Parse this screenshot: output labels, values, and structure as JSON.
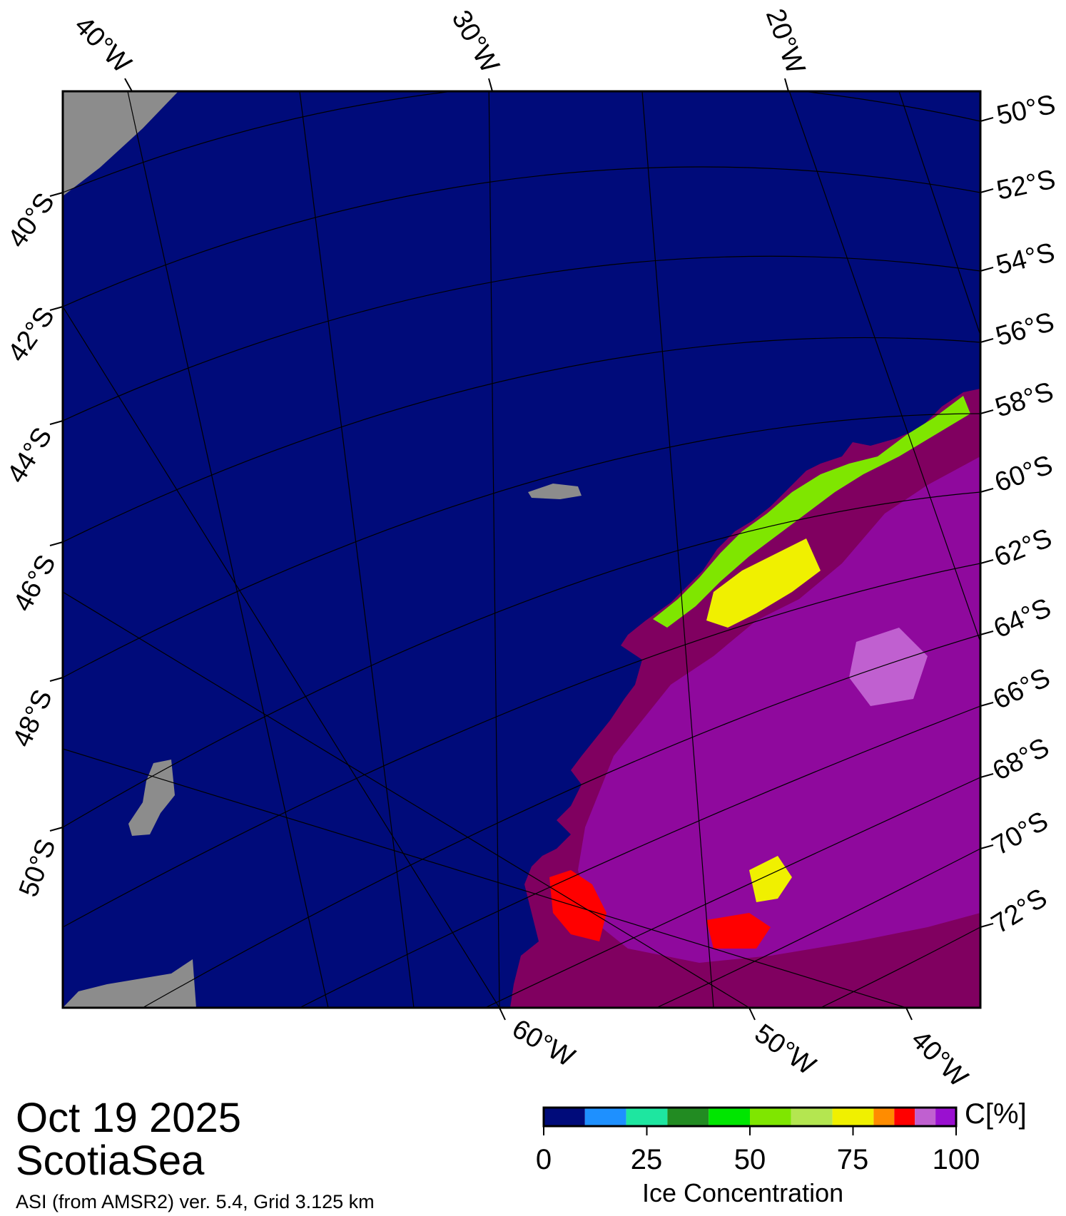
{
  "date": "Oct 19 2025",
  "region": "ScotiaSea",
  "caption": "ASI (from AMSR2) ver. 5.4,  Grid 3.125 km",
  "colorbar": {
    "title": "Ice Concentration",
    "unit": "C[%]",
    "ticks": [
      "0",
      "25",
      "50",
      "75",
      "100"
    ],
    "colors": [
      "#000b7a",
      "#1e90ff",
      "#1ee6a0",
      "#228b22",
      "#00e600",
      "#7fe600",
      "#b4e650",
      "#f0f000",
      "#ff8c00",
      "#ff0000",
      "#c060d0",
      "#9a10d0"
    ]
  },
  "graticule": {
    "top_lon_labels": [
      "40°W",
      "30°W",
      "20°W"
    ],
    "bottom_lon_labels": [
      "60°W",
      "50°W",
      "40°W"
    ],
    "left_lat_labels": [
      "40°S",
      "42°S",
      "44°S",
      "46°S",
      "48°S",
      "50°S"
    ],
    "right_lat_labels": [
      "50°S",
      "52°S",
      "54°S",
      "56°S",
      "58°S",
      "60°S",
      "62°S",
      "64°S",
      "66°S",
      "68°S",
      "70°S",
      "72°S"
    ]
  },
  "colors": {
    "ocean": "#000b7a",
    "land": "#8c8c8c",
    "ice_high": "#800060",
    "ice_purple": "#9a10d0",
    "ice_light_purple": "#c060d0",
    "ice_red": "#ff0000",
    "ice_yellow": "#f0f000",
    "ice_green": "#7fe600"
  }
}
